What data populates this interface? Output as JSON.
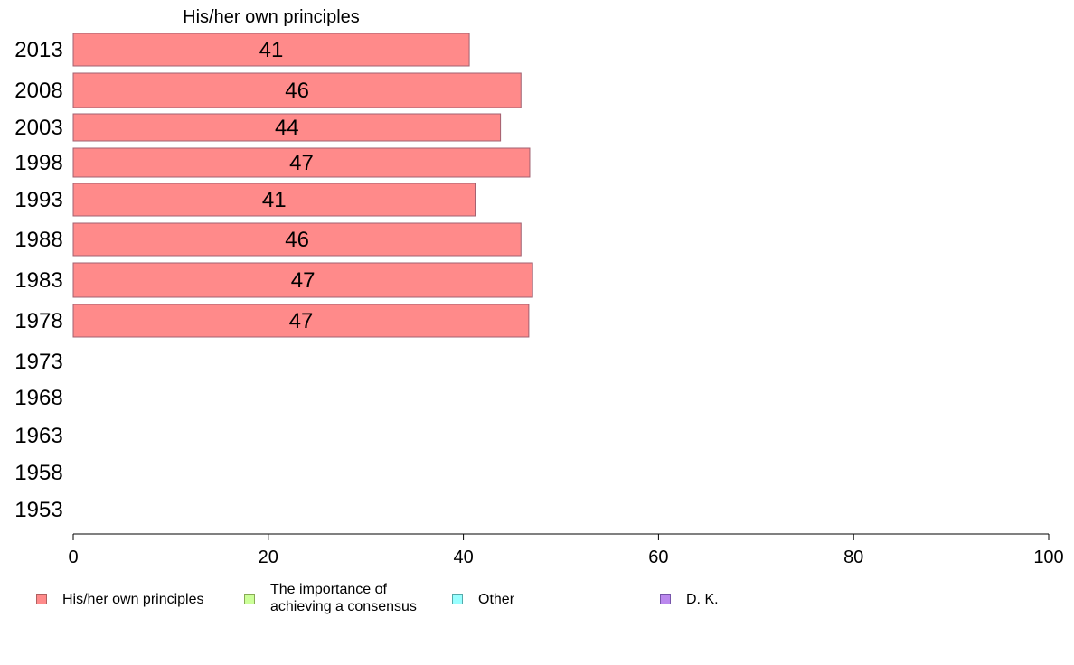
{
  "chart_data": {
    "type": "bar",
    "orientation": "horizontal",
    "title": "His/her own principles",
    "categories": [
      "2013",
      "2008",
      "2003",
      "1998",
      "1993",
      "1988",
      "1983",
      "1978",
      "1973",
      "1968",
      "1963",
      "1958",
      "1953"
    ],
    "series": [
      {
        "name": "His/her own principles",
        "values": [
          41,
          46,
          44,
          47,
          41,
          46,
          47,
          47,
          null,
          null,
          null,
          null,
          null
        ],
        "color": "#ff8a8a"
      },
      {
        "name": "The importance of\nachieving a consensus",
        "values": [
          null,
          null,
          null,
          null,
          null,
          null,
          null,
          null,
          null,
          null,
          null,
          null,
          null
        ],
        "color": "#ccff99"
      },
      {
        "name": "Other",
        "values": [
          null,
          null,
          null,
          null,
          null,
          null,
          null,
          null,
          null,
          null,
          null,
          null,
          null
        ],
        "color": "#99ffff"
      },
      {
        "name": "D. K.",
        "values": [
          null,
          null,
          null,
          null,
          null,
          null,
          null,
          null,
          null,
          null,
          null,
          null,
          null
        ],
        "color": "#bb88ee"
      }
    ],
    "bar_lengths": [
      40.6,
      45.9,
      43.8,
      46.8,
      41.2,
      45.9,
      47.1,
      46.7,
      null,
      null,
      null,
      null,
      null
    ],
    "xlim": [
      0,
      100
    ],
    "xticks": [
      0,
      20,
      40,
      60,
      80,
      100
    ],
    "xlabel": "",
    "ylabel": "",
    "grid": false,
    "legend_position": "bottom"
  }
}
